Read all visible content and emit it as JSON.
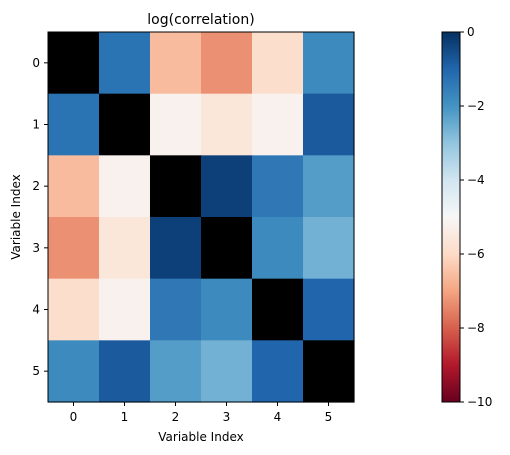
{
  "chart_data": {
    "type": "heatmap",
    "title": "log(correlation)",
    "xlabel": "Variable Index",
    "ylabel": "Variable Index",
    "x_ticks": [
      "0",
      "1",
      "2",
      "3",
      "4",
      "5"
    ],
    "y_ticks": [
      "0",
      "1",
      "2",
      "3",
      "4",
      "5"
    ],
    "values": [
      [
        null,
        -1.3,
        -6.6,
        -7.3,
        -5.9,
        -1.8
      ],
      [
        -1.3,
        null,
        -5.2,
        -5.6,
        -5.2,
        -0.8
      ],
      [
        -6.6,
        -5.2,
        null,
        -0.3,
        -1.4,
        -2.2
      ],
      [
        -7.3,
        -5.6,
        -0.3,
        null,
        -1.8,
        -2.6
      ],
      [
        -5.9,
        -5.2,
        -1.4,
        -1.8,
        null,
        -1.0
      ],
      [
        -1.8,
        -0.8,
        -2.2,
        -2.6,
        -1.0,
        null
      ]
    ],
    "missing_color": "#000000",
    "colorbar": {
      "range": [
        -10,
        0
      ],
      "ticks": [
        "0",
        "−2",
        "−4",
        "−6",
        "−8",
        "−10"
      ],
      "tick_values": [
        0,
        -2,
        -4,
        -6,
        -8,
        -10
      ],
      "colormap": "RdBu"
    }
  }
}
